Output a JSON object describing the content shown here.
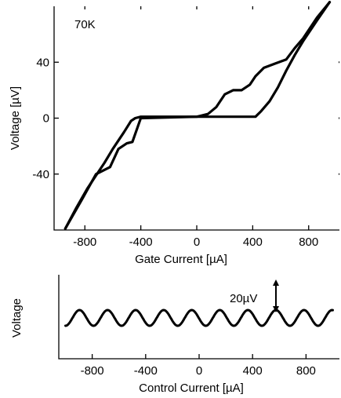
{
  "chart_data": [
    {
      "type": "line",
      "annotation": "70K",
      "xlabel": "Gate Current  [µA]",
      "ylabel": "Voltage [µV]",
      "xlim": [
        -1020,
        1020
      ],
      "ylim": [
        -80,
        80
      ],
      "x_ticks": [
        -800,
        -400,
        0,
        400,
        800
      ],
      "x_tick_labels": [
        "-800",
        "-400",
        "0",
        "400",
        "800"
      ],
      "y_ticks": [
        -40,
        0,
        40
      ],
      "y_tick_labels": [
        "-40",
        "0",
        "40"
      ],
      "grid": false,
      "series": [
        {
          "x": [
            -940,
            -820,
            -720,
            -620,
            -560,
            -500,
            -460,
            -400,
            0,
            80,
            140,
            200,
            260,
            320,
            380,
            420,
            480,
            560,
            640,
            700,
            760,
            860,
            950
          ],
          "y": [
            -79,
            -58,
            -40,
            -35,
            -22,
            -18,
            -17,
            0,
            1,
            3,
            8,
            17,
            20,
            20,
            24,
            30,
            36,
            39,
            42,
            50,
            57,
            72,
            83
          ]
        },
        {
          "x": [
            -940,
            -860,
            -780,
            -720,
            -660,
            -600,
            -520,
            -470,
            -440,
            -400,
            -300,
            0,
            300,
            420,
            460,
            520,
            580,
            640,
            700,
            760,
            860,
            950
          ],
          "y": [
            -79,
            -64,
            -50,
            -41,
            -32,
            -22,
            -10,
            -2,
            0,
            1,
            1,
            1,
            1,
            1,
            5,
            12,
            22,
            34,
            45,
            55,
            70,
            83
          ]
        }
      ]
    },
    {
      "type": "line",
      "xlabel": "Control Current  [µA]",
      "ylabel": "Voltage",
      "xlim": [
        -1050,
        1050
      ],
      "x_ticks": [
        -800,
        -400,
        0,
        400,
        800
      ],
      "x_tick_labels": [
        "-800",
        "-400",
        "0",
        "400",
        "800"
      ],
      "annotation": "20µV",
      "series": [
        {
          "form": "sinusoidal oscillation",
          "amplitude_uV": 10,
          "period_uA": 210,
          "x_range": [
            -1000,
            1000
          ]
        }
      ]
    }
  ]
}
